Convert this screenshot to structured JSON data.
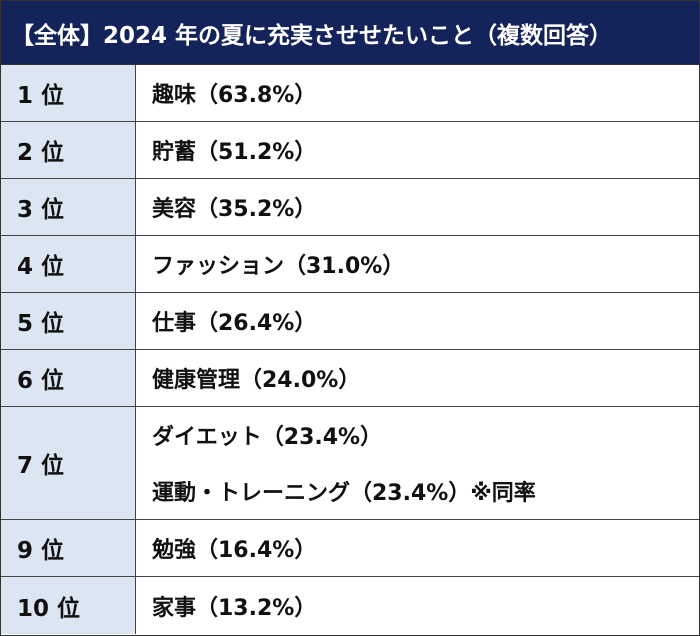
{
  "header": {
    "title": "【全体】2024 年の夏に充実させせたいこと（複数回答）"
  },
  "rows": [
    {
      "rank": "1 位",
      "items": [
        "趣味（63.8%）"
      ]
    },
    {
      "rank": "2 位",
      "items": [
        "貯蓄（51.2%）"
      ]
    },
    {
      "rank": "3 位",
      "items": [
        "美容（35.2%）"
      ]
    },
    {
      "rank": "4 位",
      "items": [
        "ファッション（31.0%）"
      ]
    },
    {
      "rank": "5 位",
      "items": [
        "仕事（26.4%）"
      ]
    },
    {
      "rank": "6 位",
      "items": [
        "健康管理（24.0%）"
      ]
    },
    {
      "rank": "7 位",
      "items": [
        "ダイエット（23.4%）",
        "運動・トレーニング（23.4%）※同率"
      ]
    },
    {
      "rank": "9 位",
      "items": [
        "勉強（16.4%）"
      ]
    },
    {
      "rank": "10 位",
      "items": [
        "家事（13.2%）"
      ]
    }
  ]
}
